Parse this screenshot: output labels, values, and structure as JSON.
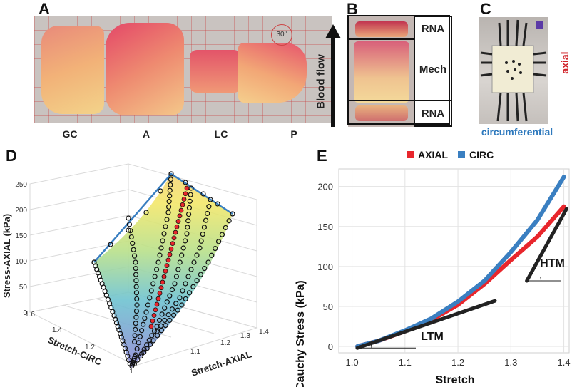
{
  "panels": {
    "a": "A",
    "b": "B",
    "c": "C",
    "d": "D",
    "e": "E"
  },
  "panel_a": {
    "segments": [
      "GC",
      "A",
      "LC",
      "P"
    ],
    "protractor": "30°"
  },
  "panel_b": {
    "flow_label": "Blood flow",
    "regions": [
      "RNA",
      "Mech",
      "RNA"
    ]
  },
  "panel_c": {
    "axial_label": "axial",
    "circ_label": "circumferential"
  },
  "colors": {
    "axial": "#e8262c",
    "circ": "#3a7fc1",
    "axial_text": "#d1232a",
    "circ_text": "#2e79bd"
  },
  "chart_data": [
    {
      "type": "scatter",
      "title": "",
      "panel": "D",
      "axes": {
        "z": {
          "label": "Stress-AXIAL (kPa)",
          "ticks": [
            0,
            50,
            100,
            150,
            200,
            250
          ]
        },
        "x": {
          "label": "Stretch-CIRC",
          "ticks": [
            1,
            1.2,
            1.4,
            1.6
          ]
        },
        "y": {
          "label": "Stretch-AXIAL",
          "ticks": [
            1,
            1.1,
            1.2,
            1.3,
            1.4
          ]
        }
      },
      "series": [
        {
          "name": "experimental data (black)",
          "points": [
            [
              1.0,
              1.0,
              0
            ],
            [
              1.1,
              1.08,
              20
            ],
            [
              1.2,
              1.15,
              55
            ],
            [
              1.3,
              1.22,
              110
            ],
            [
              1.4,
              1.3,
              180
            ],
            [
              1.45,
              1.35,
              240
            ]
          ]
        },
        {
          "name": "equibiaxial data (red)",
          "points": [
            [
              1.1,
              1.1,
              30
            ],
            [
              1.2,
              1.2,
              80
            ],
            [
              1.3,
              1.3,
              150
            ],
            [
              1.35,
              1.35,
              230
            ]
          ]
        }
      ],
      "surface": "fitted surface"
    },
    {
      "type": "line",
      "title": "",
      "panel": "E",
      "legend": [
        "AXIAL",
        "CIRC"
      ],
      "xlabel": "Stretch",
      "ylabel": "Cauchy Stress (kPa)",
      "xlim": [
        0.975,
        1.41
      ],
      "ylim": [
        -8,
        222
      ],
      "xticks": [
        1.0,
        1.1,
        1.2,
        1.3,
        1.4
      ],
      "yticks": [
        0,
        50,
        100,
        150,
        200
      ],
      "series": [
        {
          "name": "AXIAL",
          "x": [
            1.01,
            1.05,
            1.1,
            1.15,
            1.2,
            1.25,
            1.3,
            1.35,
            1.4
          ],
          "y": [
            0,
            7,
            19,
            33,
            52,
            78,
            108,
            137,
            175
          ]
        },
        {
          "name": "CIRC",
          "x": [
            1.01,
            1.05,
            1.1,
            1.15,
            1.2,
            1.25,
            1.3,
            1.35,
            1.4
          ],
          "y": [
            0,
            7,
            20,
            35,
            56,
            82,
            118,
            158,
            212
          ]
        }
      ],
      "annotations": [
        {
          "text": "LTM",
          "line": [
            [
              1.01,
              -2
            ],
            [
              1.27,
              57
            ]
          ]
        },
        {
          "text": "HTM",
          "line": [
            [
              1.33,
              82
            ],
            [
              1.405,
              172
            ]
          ]
        }
      ]
    }
  ]
}
